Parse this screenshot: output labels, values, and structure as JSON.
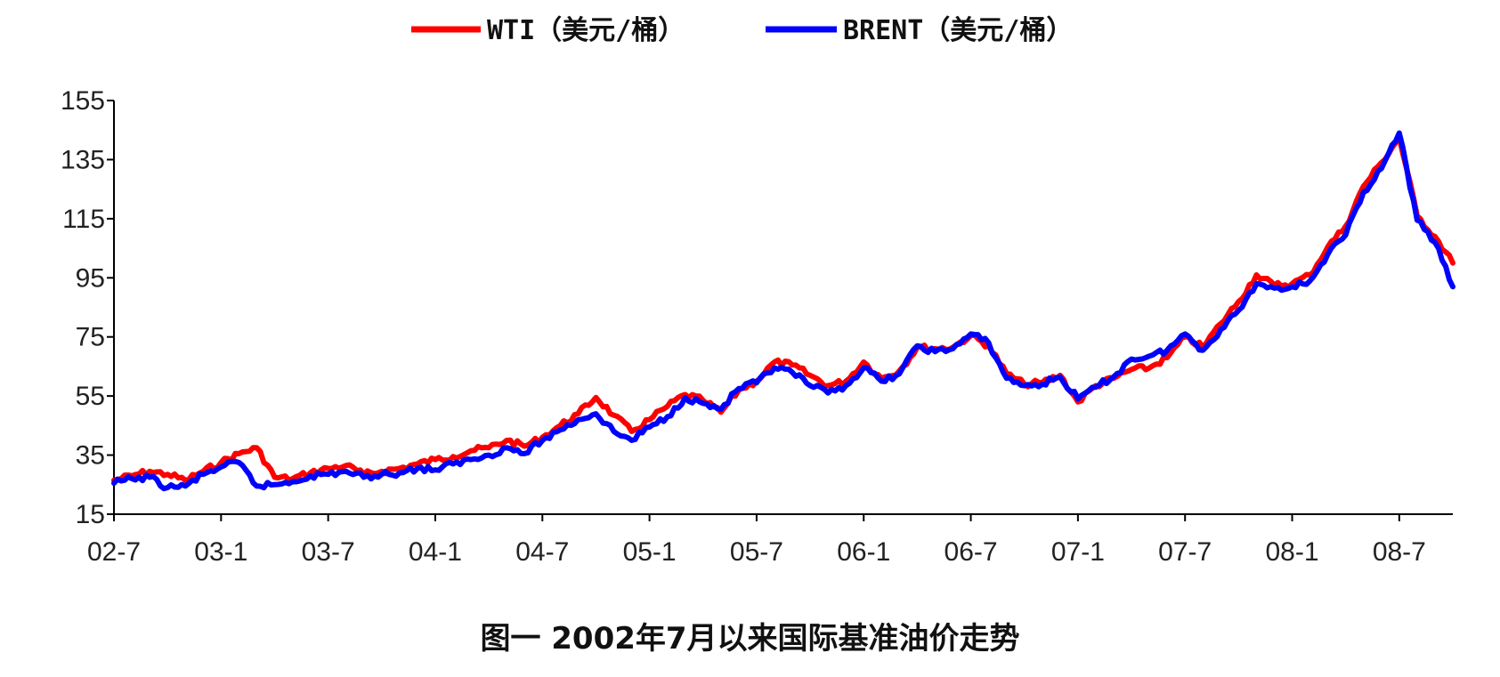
{
  "caption": "图一    2002年7月以来国际基准油价走势",
  "chart_data": {
    "type": "line",
    "title": "",
    "xlabel": "",
    "ylabel": "",
    "ylim": [
      15,
      155
    ],
    "yticks": [
      15,
      35,
      55,
      75,
      95,
      115,
      135,
      155
    ],
    "x_tick_labels": [
      "02-7",
      "03-1",
      "03-7",
      "04-1",
      "04-7",
      "05-1",
      "05-7",
      "06-1",
      "06-7",
      "07-1",
      "07-7",
      "08-1",
      "08-7"
    ],
    "x_range": [
      "02-7",
      "08-10"
    ],
    "grid": false,
    "legend_position": "top-center",
    "series": [
      {
        "name": "WTI（美元/桶）",
        "color": "#ff0000",
        "points": [
          [
            "02-7",
            26.5
          ],
          [
            "02-8",
            28.0
          ],
          [
            "02-9",
            29.5
          ],
          [
            "02-10",
            28.5
          ],
          [
            "02-11",
            26.5
          ],
          [
            "02-12",
            29.5
          ],
          [
            "03-1",
            32.5
          ],
          [
            "03-2",
            35.5
          ],
          [
            "03-3",
            37.5
          ],
          [
            "03-4",
            27.5
          ],
          [
            "03-5",
            27.0
          ],
          [
            "03-6",
            29.0
          ],
          [
            "03-7",
            30.5
          ],
          [
            "03-8",
            31.5
          ],
          [
            "03-9",
            28.5
          ],
          [
            "03-10",
            29.5
          ],
          [
            "03-11",
            30.5
          ],
          [
            "03-12",
            32.0
          ],
          [
            "04-1",
            33.5
          ],
          [
            "04-2",
            34.5
          ],
          [
            "04-3",
            36.5
          ],
          [
            "04-4",
            37.5
          ],
          [
            "04-5",
            40.0
          ],
          [
            "04-6",
            38.0
          ],
          [
            "04-7",
            41.0
          ],
          [
            "04-8",
            45.0
          ],
          [
            "04-9",
            49.0
          ],
          [
            "04-10",
            54.5
          ],
          [
            "04-11",
            48.5
          ],
          [
            "04-12",
            43.0
          ],
          [
            "05-1",
            47.0
          ],
          [
            "05-2",
            51.5
          ],
          [
            "05-3",
            55.5
          ],
          [
            "05-4",
            53.5
          ],
          [
            "05-5",
            49.5
          ],
          [
            "05-6",
            57.0
          ],
          [
            "05-7",
            60.0
          ],
          [
            "05-8",
            66.5
          ],
          [
            "05-9",
            65.5
          ],
          [
            "05-10",
            62.0
          ],
          [
            "05-11",
            58.5
          ],
          [
            "05-12",
            60.0
          ],
          [
            "06-1",
            66.5
          ],
          [
            "06-2",
            61.0
          ],
          [
            "06-3",
            63.5
          ],
          [
            "06-4",
            71.5
          ],
          [
            "06-5",
            71.0
          ],
          [
            "06-6",
            71.5
          ],
          [
            "06-7",
            75.5
          ],
          [
            "06-8",
            72.0
          ],
          [
            "06-9",
            62.5
          ],
          [
            "06-10",
            59.0
          ],
          [
            "06-11",
            59.5
          ],
          [
            "06-12",
            62.0
          ],
          [
            "07-1",
            53.0
          ],
          [
            "07-2",
            58.5
          ],
          [
            "07-3",
            61.0
          ],
          [
            "07-4",
            64.0
          ],
          [
            "07-5",
            64.5
          ],
          [
            "07-6",
            68.0
          ],
          [
            "07-7",
            75.0
          ],
          [
            "07-8",
            71.5
          ],
          [
            "07-9",
            79.5
          ],
          [
            "07-10",
            87.0
          ],
          [
            "07-11",
            96.0
          ],
          [
            "07-12",
            92.5
          ],
          [
            "08-1",
            93.0
          ],
          [
            "08-2",
            96.0
          ],
          [
            "08-3",
            105.5
          ],
          [
            "08-4",
            112.5
          ],
          [
            "08-5",
            126.0
          ],
          [
            "08-6",
            134.0
          ],
          [
            "08-7",
            142.5
          ],
          [
            "08-8",
            116.0
          ],
          [
            "08-9",
            109.0
          ],
          [
            "08-10",
            100.0
          ]
        ]
      },
      {
        "name": "BRENT（美元/桶）",
        "color": "#0000ff",
        "points": [
          [
            "02-7",
            25.5
          ],
          [
            "02-8",
            27.0
          ],
          [
            "02-9",
            27.5
          ],
          [
            "02-10",
            24.0
          ],
          [
            "02-11",
            24.5
          ],
          [
            "02-12",
            28.5
          ],
          [
            "03-1",
            31.0
          ],
          [
            "03-2",
            32.5
          ],
          [
            "03-3",
            24.5
          ],
          [
            "03-4",
            25.0
          ],
          [
            "03-5",
            26.0
          ],
          [
            "03-6",
            28.0
          ],
          [
            "03-7",
            28.5
          ],
          [
            "03-8",
            29.5
          ],
          [
            "03-9",
            27.5
          ],
          [
            "03-10",
            28.5
          ],
          [
            "03-11",
            29.0
          ],
          [
            "03-12",
            30.5
          ],
          [
            "04-1",
            30.0
          ],
          [
            "04-2",
            32.0
          ],
          [
            "04-3",
            33.5
          ],
          [
            "04-4",
            35.0
          ],
          [
            "04-5",
            37.5
          ],
          [
            "04-6",
            35.5
          ],
          [
            "04-7",
            40.0
          ],
          [
            "04-8",
            43.5
          ],
          [
            "04-9",
            47.0
          ],
          [
            "04-10",
            49.0
          ],
          [
            "04-11",
            43.0
          ],
          [
            "04-12",
            40.0
          ],
          [
            "05-1",
            44.5
          ],
          [
            "05-2",
            48.0
          ],
          [
            "05-3",
            54.5
          ],
          [
            "05-4",
            52.5
          ],
          [
            "05-5",
            50.5
          ],
          [
            "05-6",
            57.5
          ],
          [
            "05-7",
            59.5
          ],
          [
            "05-8",
            64.5
          ],
          [
            "05-9",
            63.0
          ],
          [
            "05-10",
            58.5
          ],
          [
            "05-11",
            56.0
          ],
          [
            "05-12",
            58.5
          ],
          [
            "06-1",
            64.5
          ],
          [
            "06-2",
            60.0
          ],
          [
            "06-3",
            62.5
          ],
          [
            "06-4",
            72.0
          ],
          [
            "06-5",
            70.0
          ],
          [
            "06-6",
            71.0
          ],
          [
            "06-7",
            76.0
          ],
          [
            "06-8",
            73.0
          ],
          [
            "06-9",
            61.0
          ],
          [
            "06-10",
            58.5
          ],
          [
            "06-11",
            59.0
          ],
          [
            "06-12",
            61.5
          ],
          [
            "07-1",
            54.0
          ],
          [
            "07-2",
            58.0
          ],
          [
            "07-3",
            61.5
          ],
          [
            "07-4",
            67.5
          ],
          [
            "07-5",
            68.5
          ],
          [
            "07-6",
            70.5
          ],
          [
            "07-7",
            76.0
          ],
          [
            "07-8",
            70.5
          ],
          [
            "07-9",
            77.5
          ],
          [
            "07-10",
            84.0
          ],
          [
            "07-11",
            93.0
          ],
          [
            "07-12",
            91.5
          ],
          [
            "08-1",
            92.0
          ],
          [
            "08-2",
            94.0
          ],
          [
            "08-3",
            103.0
          ],
          [
            "08-4",
            109.5
          ],
          [
            "08-5",
            124.0
          ],
          [
            "08-6",
            132.0
          ],
          [
            "08-7",
            144.0
          ],
          [
            "08-8",
            114.5
          ],
          [
            "08-9",
            107.0
          ],
          [
            "08-10",
            92.0
          ]
        ]
      }
    ]
  }
}
